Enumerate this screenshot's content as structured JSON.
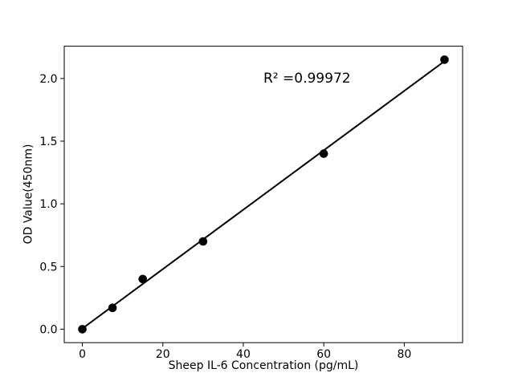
{
  "chart_data": {
    "type": "scatter",
    "title": "",
    "xlabel": "Sheep IL-6 Concentration (pg/mL)",
    "ylabel": "OD Value(450nm)",
    "x": [
      0,
      7.5,
      15,
      30,
      60,
      90
    ],
    "y": [
      0.0,
      0.17,
      0.4,
      0.7,
      1.4,
      2.15
    ],
    "xlim": [
      -4.5,
      94.5
    ],
    "ylim": [
      -0.1075,
      2.2575
    ],
    "xticks": {
      "values": [
        0,
        20,
        40,
        60,
        80
      ],
      "labels": [
        "0",
        "20",
        "40",
        "60",
        "80"
      ]
    },
    "yticks": {
      "values": [
        0,
        0.5,
        1.0,
        1.5,
        2.0
      ],
      "labels": [
        "0.0",
        "0.5",
        "1.0",
        "1.5",
        "2.0"
      ]
    },
    "trendline": {
      "slope": 0.0237,
      "intercept": 0.005,
      "x_start": 0,
      "x_end": 90
    },
    "annotation": {
      "text": "R² =0.99972",
      "r_squared": 0.99972
    },
    "grid": false,
    "legend": null,
    "colors": {
      "marker": "#000000",
      "line": "#000000",
      "axis": "#000000",
      "text": "#000000",
      "background": "#ffffff"
    }
  }
}
